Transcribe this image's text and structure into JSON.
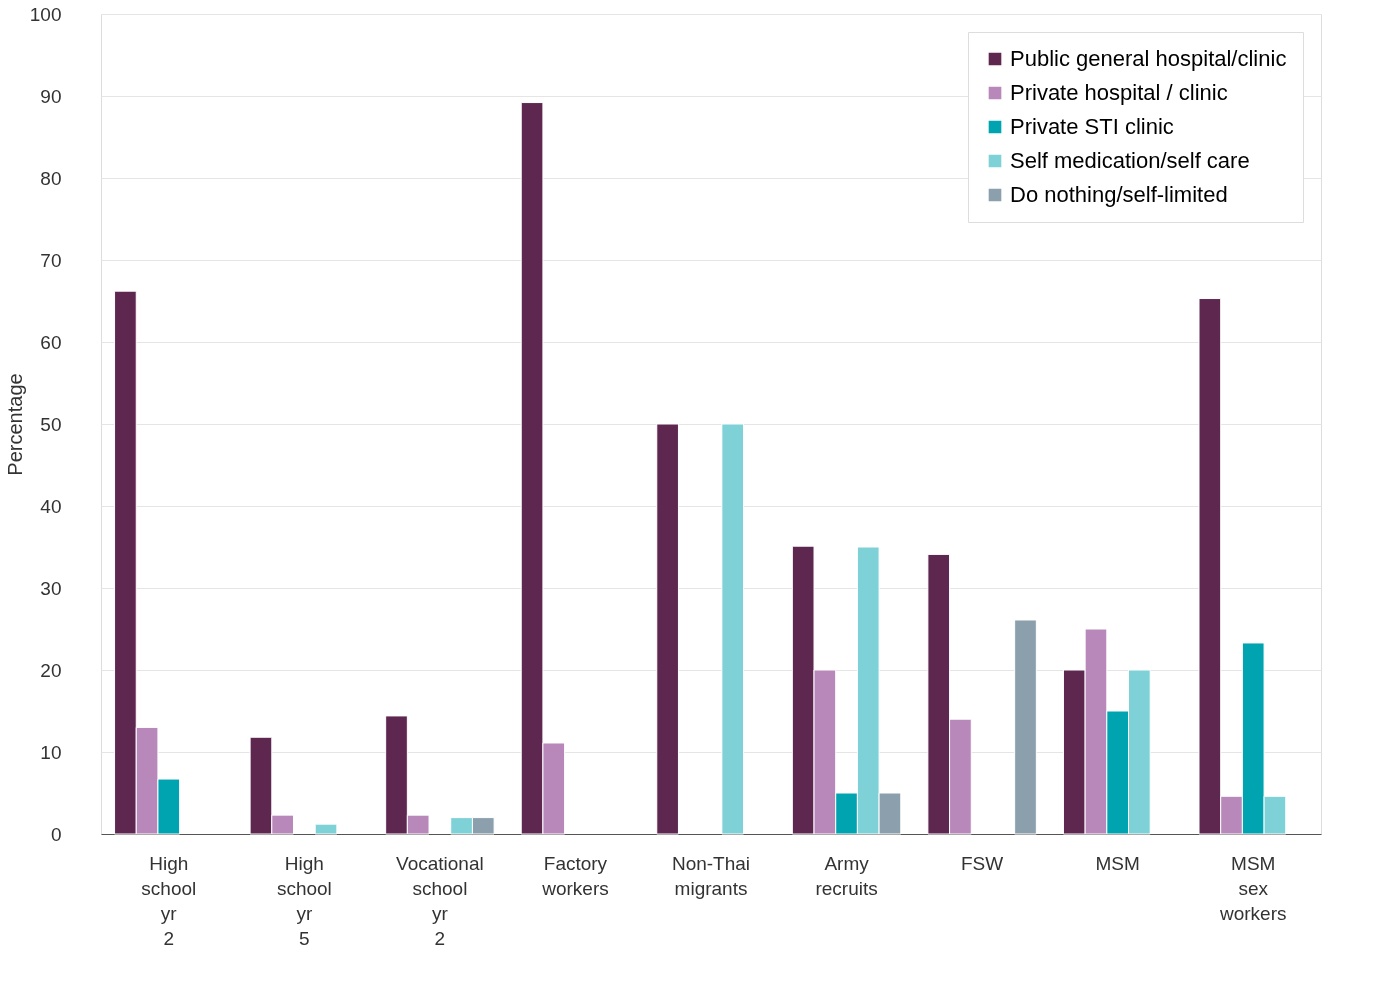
{
  "chart_data": {
    "type": "bar",
    "ylabel": "Percentage",
    "categories": [
      "High school yr 2",
      "High school yr 5",
      "Vocational school yr 2",
      "Factory workers",
      "Non-Thai migrants",
      "Army recruits",
      "FSW",
      "MSM",
      "MSM sex workers"
    ],
    "series": [
      {
        "name": "Public general hospital/clinic",
        "color": "#5e2750",
        "values": [
          66.2,
          11.8,
          14.4,
          89.2,
          50,
          35.1,
          34.1,
          20,
          65.3
        ]
      },
      {
        "name": "Private hospital / clinic",
        "color": "#b888bb",
        "values": [
          13,
          2.3,
          2.3,
          11.1,
          null,
          20,
          14,
          25,
          4.6
        ]
      },
      {
        "name": "Private STI clinic",
        "color": "#00a4b0",
        "values": [
          6.7,
          null,
          null,
          null,
          null,
          5,
          null,
          15,
          23.3
        ]
      },
      {
        "name": "Self medication/self care",
        "color": "#7fd1d8",
        "values": [
          null,
          1.2,
          2,
          null,
          50,
          35,
          null,
          20,
          4.6
        ]
      },
      {
        "name": "Do nothing/self-limited",
        "color": "#8c9fad",
        "values": [
          null,
          null,
          2,
          null,
          null,
          5,
          26.1,
          null,
          null
        ]
      }
    ],
    "ylim": [
      0,
      100
    ],
    "yticks": [
      0,
      10,
      20,
      30,
      40,
      50,
      60,
      70,
      80,
      90,
      100
    ],
    "grid": "y",
    "legend": "top right"
  }
}
